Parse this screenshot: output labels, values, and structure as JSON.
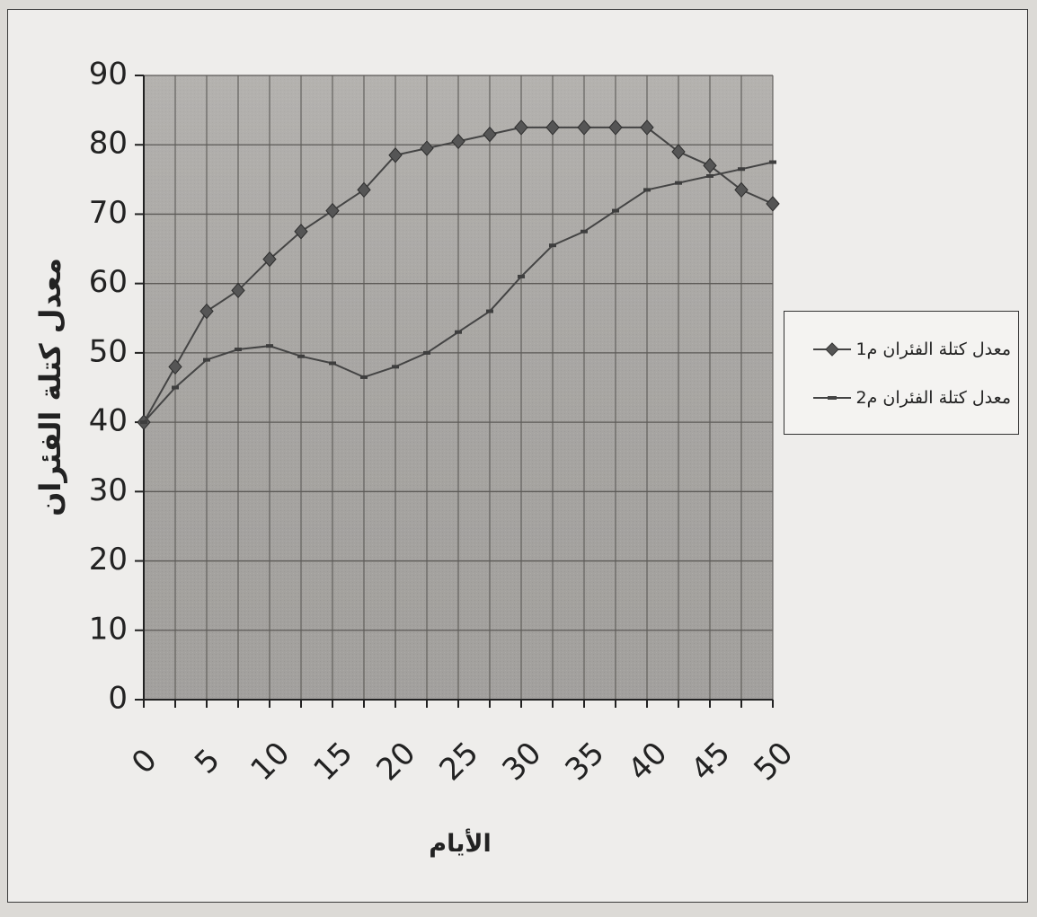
{
  "chart_data": {
    "type": "line",
    "xlabel": "الأيام",
    "ylabel": "معدل كتلة الفئران",
    "ylim": [
      0,
      90
    ],
    "yticks": [
      0,
      10,
      20,
      30,
      40,
      50,
      60,
      70,
      80,
      90
    ],
    "xlim": [
      0,
      50
    ],
    "xtick_labels": [
      "0",
      "5",
      "10",
      "15",
      "20",
      "25",
      "30",
      "35",
      "40",
      "45",
      "50"
    ],
    "grid": true,
    "legend_position": "right",
    "series": [
      {
        "name": "معدل كتلة الفئران م1",
        "marker": "diamond",
        "color": "#444444",
        "x": [
          0,
          2.5,
          5,
          7.5,
          10,
          12.5,
          15,
          17.5,
          20,
          22.5,
          25,
          27.5,
          30,
          32.5,
          35,
          37.5,
          40,
          42.5,
          45,
          47.5,
          50
        ],
        "y": [
          40,
          48,
          56,
          59,
          63.5,
          67.5,
          70.5,
          73.5,
          78.5,
          79.5,
          80.5,
          81.5,
          82.5,
          82.5,
          82.5,
          82.5,
          82.5,
          79,
          77,
          73.5,
          71.5
        ]
      },
      {
        "name": "معدل كتلة الفئران م2",
        "marker": "dash",
        "color": "#444444",
        "x": [
          0,
          2.5,
          5,
          7.5,
          10,
          12.5,
          15,
          17.5,
          20,
          22.5,
          25,
          27.5,
          30,
          32.5,
          35,
          37.5,
          40,
          42.5,
          45,
          47.5,
          50
        ],
        "y": [
          40,
          45,
          49,
          50.5,
          51,
          49.5,
          48.5,
          46.5,
          48,
          50,
          53,
          56,
          61,
          65.5,
          67.5,
          70.5,
          73.5,
          74.5,
          75.5,
          76.5,
          77.5
        ]
      }
    ]
  }
}
